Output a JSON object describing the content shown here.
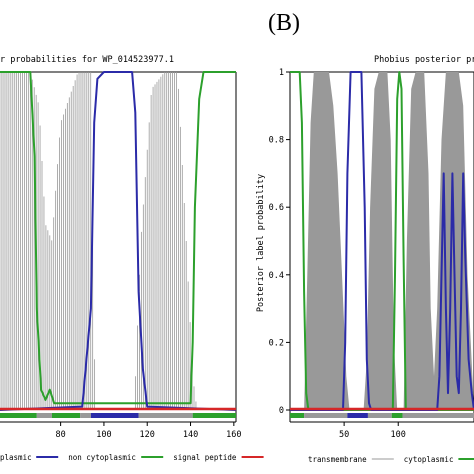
{
  "colors": {
    "transmembrane": "#999999",
    "cytoplasmic": "#2ca02c",
    "non_cytoplasmic": "#2ca02c",
    "signal_peptide": "#d62728",
    "curve_blue": "#2b2ba8",
    "frame": "#000000"
  },
  "panel_label": "(B)",
  "chart_data": [
    {
      "type": "area",
      "title": "r probabilities for WP_014523977.1",
      "xlabel": "",
      "ylabel": "",
      "xlim": [
        52,
        161
      ],
      "ylim": [
        0,
        1
      ],
      "xticks": [
        "80",
        "100",
        "120",
        "140",
        "160"
      ],
      "grid": false,
      "legend": {
        "placement": "bottom",
        "entries": [
          "plasmic",
          "non cytoplasmic",
          "signal peptide"
        ]
      },
      "series": [
        {
          "name": "non cytoplasmic",
          "color_key": "non_cytoplasmic",
          "x": [
            52,
            66,
            68,
            69,
            71,
            73,
            75,
            77,
            140,
            141,
            142,
            144,
            146,
            161
          ],
          "y": [
            1.0,
            1.0,
            0.75,
            0.3,
            0.06,
            0.03,
            0.06,
            0.02,
            0.02,
            0.2,
            0.6,
            0.92,
            1.0,
            1.0
          ]
        },
        {
          "name": "cytoplasmic",
          "color_key": "curve_blue",
          "x": [
            52,
            90,
            94,
            95.5,
            97,
            100,
            113,
            114.5,
            116,
            118,
            120,
            161
          ],
          "y": [
            0.0,
            0.01,
            0.3,
            0.85,
            0.98,
            1.0,
            1.0,
            0.88,
            0.35,
            0.12,
            0.01,
            0.0
          ]
        },
        {
          "name": "transmembrane",
          "color_key": "transmembrane",
          "x": [
            52,
            66,
            70,
            73,
            76,
            80,
            88,
            94,
            96,
            114,
            117,
            122,
            128,
            134,
            138,
            141,
            143,
            161
          ],
          "y": [
            1.0,
            1.0,
            0.9,
            0.55,
            0.5,
            0.85,
            1.0,
            1.0,
            0.0,
            0.0,
            0.5,
            0.95,
            1.0,
            1.0,
            0.5,
            0.1,
            0.0,
            0.0
          ]
        }
      ],
      "track": [
        {
          "from": 52,
          "to": 69,
          "class": "non_cytoplasmic"
        },
        {
          "from": 69,
          "to": 76,
          "class": "transmembrane"
        },
        {
          "from": 76,
          "to": 89,
          "class": "non_cytoplasmic"
        },
        {
          "from": 89,
          "to": 94,
          "class": "transmembrane"
        },
        {
          "from": 94,
          "to": 116,
          "class": "curve_blue"
        },
        {
          "from": 116,
          "to": 141,
          "class": "transmembrane"
        },
        {
          "from": 141,
          "to": 161,
          "class": "non_cytoplasmic"
        }
      ],
      "signal_peptide_level": 0.0
    },
    {
      "type": "area",
      "title": "Phobius posterior proba",
      "xlabel": "",
      "ylabel": "Posterior label probability",
      "xlim": [
        0,
        170
      ],
      "ylim": [
        0,
        1
      ],
      "yticks": [
        "0",
        "0.2",
        "0.4",
        "0.6",
        "0.8",
        "1"
      ],
      "xticks": [
        "50",
        "100"
      ],
      "grid": false,
      "legend": {
        "placement": "bottom",
        "entries": [
          "transmembrane",
          "cytoplasmic"
        ]
      },
      "series": [
        {
          "name": "transmembrane",
          "color_key": "transmembrane",
          "x": [
            0,
            13,
            16,
            19,
            22,
            26,
            30,
            33,
            36,
            40,
            44,
            48,
            52,
            55,
            68,
            71,
            74,
            78,
            82,
            86,
            90,
            93,
            96,
            99,
            102,
            105,
            108,
            112,
            116,
            120,
            124,
            128,
            130,
            133,
            136,
            140,
            144,
            148,
            152,
            156,
            160,
            164,
            170
          ],
          "y": [
            0,
            0,
            0.4,
            0.85,
            1.0,
            1.0,
            1.0,
            1.0,
            1.0,
            0.9,
            0.7,
            0.4,
            0.1,
            0,
            0,
            0.15,
            0.6,
            0.95,
            1.0,
            1.0,
            1.0,
            0.8,
            0.2,
            0,
            0,
            0,
            0.5,
            0.95,
            1.0,
            1.0,
            1.0,
            0.7,
            0.3,
            0.1,
            0.3,
            0.8,
            1.0,
            1.0,
            1.0,
            1.0,
            0.9,
            0.4,
            0.0
          ]
        },
        {
          "name": "cytoplasmic",
          "color_key": "cytoplasmic",
          "x": [
            0,
            9,
            11,
            13,
            15,
            17,
            95,
            97,
            99,
            101,
            103,
            105,
            107,
            170
          ],
          "y": [
            1.0,
            1.0,
            0.85,
            0.35,
            0.05,
            0.0,
            0.0,
            0.4,
            0.92,
            1.0,
            0.95,
            0.45,
            0.0,
            0.0
          ]
        },
        {
          "name": "",
          "color_key": "curve_blue",
          "x": [
            0,
            49,
            51,
            53,
            56,
            66,
            69,
            71,
            73,
            75,
            136,
            138,
            140,
            142,
            144,
            146,
            148,
            150,
            152,
            154,
            156,
            158,
            160,
            162,
            165,
            168,
            170
          ],
          "y": [
            0,
            0,
            0.2,
            0.7,
            1.0,
            1.0,
            0.6,
            0.15,
            0.02,
            0,
            0,
            0.1,
            0.4,
            0.7,
            0.3,
            0.05,
            0.3,
            0.7,
            0.4,
            0.1,
            0.05,
            0.3,
            0.7,
            0.45,
            0.15,
            0.05,
            0
          ]
        }
      ],
      "track": [
        {
          "from": 0,
          "to": 13,
          "class": "cytoplasmic"
        },
        {
          "from": 13,
          "to": 53,
          "class": "transmembrane"
        },
        {
          "from": 53,
          "to": 72,
          "class": "curve_blue"
        },
        {
          "from": 72,
          "to": 94,
          "class": "transmembrane"
        },
        {
          "from": 94,
          "to": 104,
          "class": "cytoplasmic"
        },
        {
          "from": 104,
          "to": 170,
          "class": "transmembrane"
        }
      ],
      "signal_peptide_level": 0.0
    }
  ]
}
